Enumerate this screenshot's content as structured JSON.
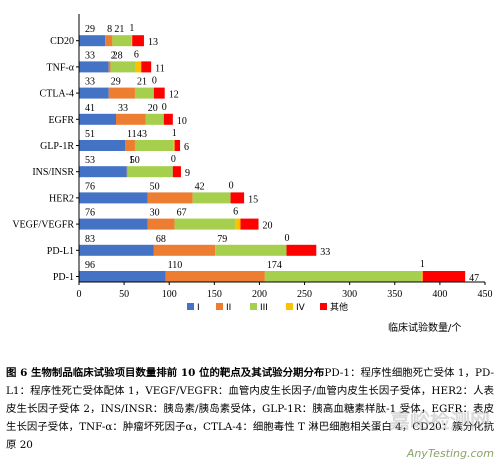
{
  "chart_data": {
    "type": "bar",
    "stacked": true,
    "orientation": "horizontal",
    "xlabel": "临床试验数量/个",
    "xlim": [
      0,
      450
    ],
    "xticks": [
      "0",
      "50",
      "100",
      "150",
      "200",
      "250",
      "300",
      "350",
      "400",
      "450"
    ],
    "legend_position": "bottom-center",
    "categories": [
      "CD20",
      "TNF-α",
      "CTLA-4",
      "EGFR",
      "GLP-1R",
      "INS/INSR",
      "HER2",
      "VEGF/VEGFR",
      "PD-L1",
      "PD-1"
    ],
    "series": [
      {
        "name": "I",
        "color": "#4472c4",
        "values": [
          29,
          33,
          33,
          41,
          51,
          53,
          76,
          76,
          83,
          96
        ]
      },
      {
        "name": "II",
        "color": "#ed7d31",
        "values": [
          8,
          2,
          29,
          33,
          11,
          1,
          50,
          30,
          68,
          110
        ]
      },
      {
        "name": "III",
        "color": "#a5cf4c",
        "values": [
          21,
          28,
          21,
          20,
          43,
          50,
          42,
          67,
          79,
          174
        ]
      },
      {
        "name": "IV",
        "color": "#ffc000",
        "values": [
          1,
          6,
          0,
          0,
          1,
          0,
          0,
          6,
          0,
          1
        ]
      },
      {
        "name": "其他",
        "color": "#ff0000",
        "values": [
          13,
          11,
          12,
          10,
          6,
          9,
          15,
          20,
          33,
          47
        ]
      }
    ]
  },
  "caption": {
    "title": "图 6  生物制品临床试验项目数量排前 10 位的靶点及其试验分期分布",
    "body": "PD-1：程序性细胞死亡受体 1，PD-L1：程序性死亡受体配体 1，VEGF/VEGFR：血管内皮生长因子/血管内皮生长因子受体，HER2：人表皮生长因子受体 2，INS/INSR：胰岛素/胰岛素受体，GLP-1R：胰高血糖素样肽-1 受体，EGFR：表皮生长因子受体，TNF-α：肿瘤坏死因子α，CTLA-4：细胞毒性 T 淋巴细胞相关蛋白 4，CD20：簇分化抗原 20"
  },
  "watermark": {
    "text": "嘉峪检测网",
    "url": "AnyTesting.com"
  }
}
